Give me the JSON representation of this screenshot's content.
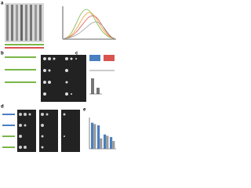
{
  "figure": {
    "panel_labels": [
      "a",
      "b",
      "c",
      "d",
      "e"
    ],
    "panel_e": {
      "series": [
        {
          "color": "#4a7fc1",
          "values": [
            1.0,
            0.9,
            0.55,
            0.45
          ]
        },
        {
          "color": "#9a9a9a",
          "values": [
            0.95,
            0.4,
            0.5,
            0.3
          ]
        }
      ],
      "ylim": [
        0,
        1.2
      ]
    }
  }
}
